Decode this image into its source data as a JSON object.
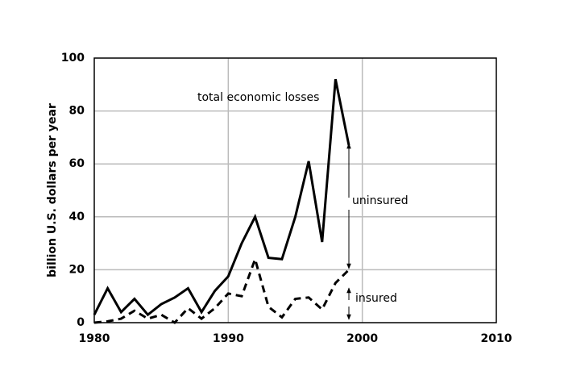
{
  "chart_data": {
    "type": "line",
    "ylabel": "billion U.S. dollars per year",
    "x": [
      1980,
      1981,
      1982,
      1983,
      1984,
      1985,
      1986,
      1987,
      1988,
      1989,
      1990,
      1991,
      1992,
      1993,
      1994,
      1995,
      1996,
      1997,
      1998,
      1999
    ],
    "series": [
      {
        "name": "total economic losses",
        "color": "#000000",
        "dashed": false,
        "values": [
          3,
          13,
          4,
          9,
          3,
          7,
          9.5,
          13,
          4,
          12,
          17.5,
          30,
          40,
          24.5,
          24,
          40,
          61,
          30.5,
          92,
          67
        ]
      },
      {
        "name": "insured",
        "color": "#000000",
        "dashed": true,
        "values": [
          0,
          0.5,
          1.5,
          4.5,
          1.5,
          3,
          0,
          5.5,
          1.5,
          5.5,
          11,
          10,
          24,
          6,
          2,
          9,
          9.5,
          5,
          15,
          20
        ]
      }
    ],
    "annotations": [
      "uninsured"
    ],
    "xlim": [
      1980,
      2010
    ],
    "xticks": [
      1980,
      1990,
      2000,
      2010
    ],
    "ylim": [
      0,
      100
    ],
    "yticks": [
      0,
      20,
      40,
      60,
      80,
      100
    ],
    "grid": true
  }
}
